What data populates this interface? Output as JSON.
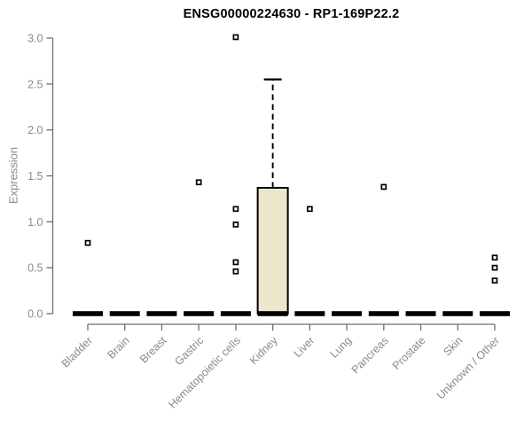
{
  "chart_data": {
    "type": "boxplot",
    "title": "ENSG00000224630 - RP1-169P22.2",
    "ylabel": "Expression",
    "xlabel": "",
    "ylim": [
      0.0,
      3.0
    ],
    "yticks": [
      0.0,
      0.5,
      1.0,
      1.5,
      2.0,
      2.5,
      3.0
    ],
    "grid": false,
    "legend": "none",
    "categories": [
      "Bladder",
      "Brain",
      "Breast",
      "Gastric",
      "Hematopoietic cells",
      "Kidney",
      "Liver",
      "Lung",
      "Pancreas",
      "Prostate",
      "Skin",
      "Unknown / Other"
    ],
    "boxes": [
      {
        "category": "Bladder",
        "q1": 0,
        "median": 0,
        "q3": 0,
        "whisker_low": 0,
        "whisker_high": 0,
        "outliers": [
          0.77
        ]
      },
      {
        "category": "Brain",
        "q1": 0,
        "median": 0,
        "q3": 0,
        "whisker_low": 0,
        "whisker_high": 0,
        "outliers": []
      },
      {
        "category": "Breast",
        "q1": 0,
        "median": 0,
        "q3": 0,
        "whisker_low": 0,
        "whisker_high": 0,
        "outliers": []
      },
      {
        "category": "Gastric",
        "q1": 0,
        "median": 0,
        "q3": 0,
        "whisker_low": 0,
        "whisker_high": 0,
        "outliers": [
          1.43
        ]
      },
      {
        "category": "Hematopoietic cells",
        "q1": 0,
        "median": 0,
        "q3": 0,
        "whisker_low": 0,
        "whisker_high": 0,
        "outliers": [
          3.01,
          1.14,
          0.97,
          0.56,
          0.46
        ]
      },
      {
        "category": "Kidney",
        "q1": 0,
        "median": 0,
        "q3": 1.37,
        "whisker_low": 0,
        "whisker_high": 2.55,
        "outliers": []
      },
      {
        "category": "Liver",
        "q1": 0,
        "median": 0,
        "q3": 0,
        "whisker_low": 0,
        "whisker_high": 0,
        "outliers": [
          1.14
        ]
      },
      {
        "category": "Lung",
        "q1": 0,
        "median": 0,
        "q3": 0,
        "whisker_low": 0,
        "whisker_high": 0,
        "outliers": []
      },
      {
        "category": "Pancreas",
        "q1": 0,
        "median": 0,
        "q3": 0,
        "whisker_low": 0,
        "whisker_high": 0,
        "outliers": [
          1.38
        ]
      },
      {
        "category": "Prostate",
        "q1": 0,
        "median": 0,
        "q3": 0,
        "whisker_low": 0,
        "whisker_high": 0,
        "outliers": []
      },
      {
        "category": "Skin",
        "q1": 0,
        "median": 0,
        "q3": 0,
        "whisker_low": 0,
        "whisker_high": 0,
        "outliers": []
      },
      {
        "category": "Unknown / Other",
        "q1": 0,
        "median": 0,
        "q3": 0,
        "whisker_low": 0,
        "whisker_high": 0,
        "outliers": [
          0.61,
          0.5,
          0.36
        ]
      }
    ],
    "colors": {
      "box_fill": "#ECE7CB",
      "box_border": "#000000",
      "median": "#000000",
      "whisker": "#000000",
      "outlier": "#000000",
      "axis": "#6E6E6E",
      "tick_text": "#8A8A8A",
      "title_text": "#000000"
    }
  }
}
